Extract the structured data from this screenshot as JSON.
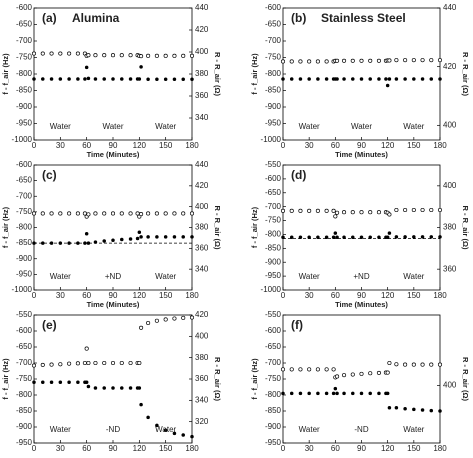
{
  "chart_data": [
    {
      "type": "scatter",
      "label": "(a)",
      "title": "Alumina",
      "x_label": "Time (Minutes)",
      "y_label": "f - f_air (Hz)",
      "y2_label": "R - R_air (Ω)",
      "xlim": [
        0,
        180
      ],
      "xticks": [
        0,
        30,
        60,
        90,
        120,
        150,
        180
      ],
      "ylim": [
        -1000,
        -600
      ],
      "yticks": [
        -1000,
        -950,
        -900,
        -850,
        -800,
        -750,
        -700,
        -650,
        -600
      ],
      "y2lim": [
        320,
        440
      ],
      "y2ticks": [
        340,
        360,
        380,
        400,
        420,
        440
      ],
      "x": [
        0,
        10,
        20,
        30,
        40,
        50,
        58,
        60,
        62,
        70,
        80,
        90,
        100,
        110,
        118,
        120,
        122,
        130,
        140,
        150,
        160,
        170,
        180
      ],
      "series": [
        {
          "marker": "open",
          "color": "#000000",
          "values": [
            -738,
            -738,
            -738,
            -738,
            -738,
            -738,
            -738,
            -745,
            -743,
            -743,
            -743,
            -743,
            -743,
            -743,
            -743,
            -745,
            -746,
            -745,
            -745,
            -745,
            -745,
            -745,
            -745
          ]
        },
        {
          "marker": "filled",
          "axis": "y2",
          "color": "#000000",
          "values": [
            375.5,
            375.5,
            375.5,
            375.5,
            375.5,
            375.5,
            375.5,
            386,
            376,
            375.5,
            375.5,
            375.5,
            375.5,
            375.5,
            375.5,
            375.5,
            386.5,
            375.2,
            375.2,
            375.2,
            375.2,
            375.2,
            375.2
          ]
        }
      ],
      "annotations": [
        "Water",
        "Water",
        "Water"
      ]
    },
    {
      "type": "scatter",
      "label": "(b)",
      "title": "Stainless Steel",
      "x_label": "Time (Minutes)",
      "y_label": "f - f_air (Hz)",
      "y2_label": "R - R_air (Ω)",
      "xlim": [
        0,
        180
      ],
      "xticks": [
        0,
        30,
        60,
        90,
        120,
        150,
        180
      ],
      "ylim": [
        -1000,
        -600
      ],
      "yticks": [
        -1000,
        -950,
        -900,
        -850,
        -800,
        -750,
        -700,
        -650,
        -600
      ],
      "y2lim": [
        395,
        440
      ],
      "y2ticks": [
        400,
        420,
        440
      ],
      "x": [
        0,
        10,
        20,
        30,
        40,
        50,
        58,
        60,
        62,
        70,
        80,
        90,
        100,
        110,
        118,
        120,
        122,
        130,
        140,
        150,
        160,
        170,
        180
      ],
      "series": [
        {
          "marker": "open",
          "color": "#000000",
          "values": [
            -762,
            -762,
            -762,
            -762,
            -762,
            -762,
            -762,
            -760,
            -760,
            -760,
            -760,
            -760,
            -760,
            -760,
            -760,
            -759,
            -759,
            -758,
            -758,
            -758,
            -758,
            -758,
            -758
          ]
        },
        {
          "marker": "filled",
          "axis": "y2",
          "color": "#000000",
          "values": [
            415.8,
            415.8,
            415.8,
            415.8,
            415.8,
            415.8,
            415.8,
            415.8,
            415.8,
            415.8,
            415.8,
            415.8,
            415.8,
            415.8,
            415.8,
            413.6,
            415.8,
            415.8,
            415.8,
            415.8,
            415.8,
            415.8,
            415.8
          ]
        }
      ],
      "annotations": [
        "Water",
        "Water",
        "Water"
      ]
    },
    {
      "type": "scatter",
      "label": "(c)",
      "x_label": "Time (Minutes)",
      "y_label": "f - f_air (Hz)",
      "y2_label": "R - R_air (Ω)",
      "xlim": [
        0,
        180
      ],
      "xticks": [
        0,
        30,
        60,
        90,
        120,
        150,
        180
      ],
      "ylim": [
        -1000,
        -600
      ],
      "yticks": [
        -1000,
        -950,
        -900,
        -850,
        -800,
        -750,
        -700,
        -650,
        -600
      ],
      "y2lim": [
        320,
        440
      ],
      "y2ticks": [
        340,
        360,
        380,
        400,
        420,
        440
      ],
      "x": [
        0,
        10,
        20,
        30,
        40,
        50,
        58,
        60,
        62,
        70,
        80,
        90,
        100,
        110,
        118,
        120,
        122,
        130,
        140,
        150,
        160,
        170,
        180
      ],
      "series": [
        {
          "marker": "open",
          "color": "#000000",
          "values": [
            -755,
            -755,
            -755,
            -755,
            -755,
            -755,
            -755,
            -765,
            -758,
            -755,
            -755,
            -755,
            -755,
            -755,
            -755,
            -765,
            -757,
            -755,
            -755,
            -755,
            -755,
            -755,
            -755
          ]
        },
        {
          "marker": "filled",
          "axis": "y2",
          "color": "#000000",
          "values": [
            365,
            365,
            365,
            365,
            365,
            365,
            365,
            374,
            365,
            366,
            367,
            367.8,
            368.5,
            369,
            369.5,
            375.5,
            371,
            371,
            371,
            371,
            371,
            371,
            371
          ]
        }
      ],
      "reference_line": -850,
      "annotations": [
        "Water",
        "+ND",
        "Water"
      ]
    },
    {
      "type": "scatter",
      "label": "(d)",
      "x_label": "Time (Minutes)",
      "y_label": "f - f_air (Hz)",
      "y2_label": "R - R_air (Ω)",
      "xlim": [
        0,
        180
      ],
      "xticks": [
        0,
        30,
        60,
        90,
        120,
        150,
        180
      ],
      "ylim": [
        -1000,
        -550
      ],
      "yticks": [
        -1000,
        -950,
        -900,
        -850,
        -800,
        -750,
        -700,
        -650,
        -600,
        -550
      ],
      "y2lim": [
        350,
        410
      ],
      "y2ticks": [
        360,
        380,
        400
      ],
      "x": [
        0,
        10,
        20,
        30,
        40,
        50,
        58,
        60,
        62,
        70,
        80,
        90,
        100,
        110,
        118,
        120,
        122,
        130,
        140,
        150,
        160,
        170,
        180
      ],
      "series": [
        {
          "marker": "open",
          "color": "#000000",
          "values": [
            -715,
            -715,
            -715,
            -715,
            -715,
            -715,
            -715,
            -735,
            -722,
            -720,
            -720,
            -720,
            -720,
            -720,
            -720,
            -722,
            -728,
            -712,
            -712,
            -712,
            -712,
            -712,
            -712
          ]
        },
        {
          "marker": "filled",
          "axis": "y2",
          "color": "#000000",
          "values": [
            375.3,
            375.3,
            375.3,
            375.3,
            375.3,
            375.3,
            375.3,
            377.3,
            375.3,
            375.3,
            375.3,
            375.3,
            375.3,
            375.3,
            375.3,
            375.3,
            377.3,
            375.5,
            375.5,
            375.5,
            375.5,
            375.5,
            375.5
          ]
        }
      ],
      "reference_line": -815,
      "annotations": [
        "Water",
        "+ND",
        "Water"
      ]
    },
    {
      "type": "scatter",
      "label": "(e)",
      "y_label": "f - f_air (Hz)",
      "y2_label": "R - R_air (Ω)",
      "xlim": [
        0,
        180
      ],
      "xticks": [
        0,
        30,
        60,
        90,
        120,
        150,
        180
      ],
      "ylim": [
        -950,
        -550
      ],
      "yticks": [
        -950,
        -900,
        -850,
        -800,
        -750,
        -700,
        -650,
        -600,
        -550
      ],
      "y2lim": [
        300,
        420
      ],
      "y2ticks": [
        320,
        340,
        360,
        380,
        400,
        420
      ],
      "x": [
        0,
        10,
        20,
        30,
        40,
        50,
        58,
        60,
        62,
        70,
        80,
        90,
        100,
        110,
        118,
        120,
        122,
        130,
        140,
        150,
        160,
        170,
        180
      ],
      "series": [
        {
          "marker": "open",
          "color": "#000000",
          "values": [
            -708,
            -706,
            -705,
            -704,
            -702,
            -701,
            -700,
            -655,
            -700,
            -700,
            -700,
            -700,
            -700,
            -700,
            -700,
            -700,
            -590,
            -575,
            -568,
            -564,
            -561,
            -559,
            -558
          ]
        },
        {
          "marker": "filled",
          "axis": "y2",
          "color": "#000000",
          "values": [
            357,
            357,
            357,
            357,
            357,
            357,
            357,
            357,
            353,
            351.6,
            351.6,
            351.6,
            351.6,
            351.6,
            351.6,
            351.6,
            336,
            324,
            316.5,
            312,
            309,
            307.5,
            306
          ]
        }
      ],
      "annotations": [
        "Water",
        "-ND",
        "Water"
      ]
    },
    {
      "type": "scatter",
      "label": "(f)",
      "y_label": "f - f_air (Hz)",
      "y2_label": "R - R_air (Ω)",
      "xlim": [
        0,
        180
      ],
      "xticks": [
        0,
        30,
        60,
        90,
        120,
        150,
        180
      ],
      "ylim": [
        -950,
        -550
      ],
      "yticks": [
        -950,
        -900,
        -850,
        -800,
        -750,
        -700,
        -650,
        -600,
        -550
      ],
      "y2lim": [
        355,
        455
      ],
      "y2ticks": [
        400
      ],
      "x": [
        0,
        10,
        20,
        30,
        40,
        50,
        58,
        60,
        62,
        70,
        80,
        90,
        100,
        110,
        118,
        120,
        122,
        130,
        140,
        150,
        160,
        170,
        180
      ],
      "series": [
        {
          "marker": "open",
          "color": "#000000",
          "values": [
            -720,
            -720,
            -720,
            -720,
            -720,
            -720,
            -720,
            -745,
            -742,
            -738,
            -736,
            -734,
            -732,
            -731,
            -730,
            -730,
            -700,
            -704,
            -705,
            -705,
            -705,
            -705,
            -705
          ]
        },
        {
          "marker": "filled",
          "axis": "y2",
          "color": "#000000",
          "values": [
            393.75,
            393.75,
            393.75,
            393.75,
            393.75,
            393.75,
            393.75,
            397.5,
            393.75,
            393.75,
            393.75,
            393.75,
            393.75,
            393.75,
            393.75,
            393.75,
            382.5,
            382.5,
            381.75,
            381.25,
            380.75,
            380.25,
            380
          ]
        }
      ],
      "annotations": [
        "Water",
        "-ND",
        "Water"
      ]
    }
  ]
}
